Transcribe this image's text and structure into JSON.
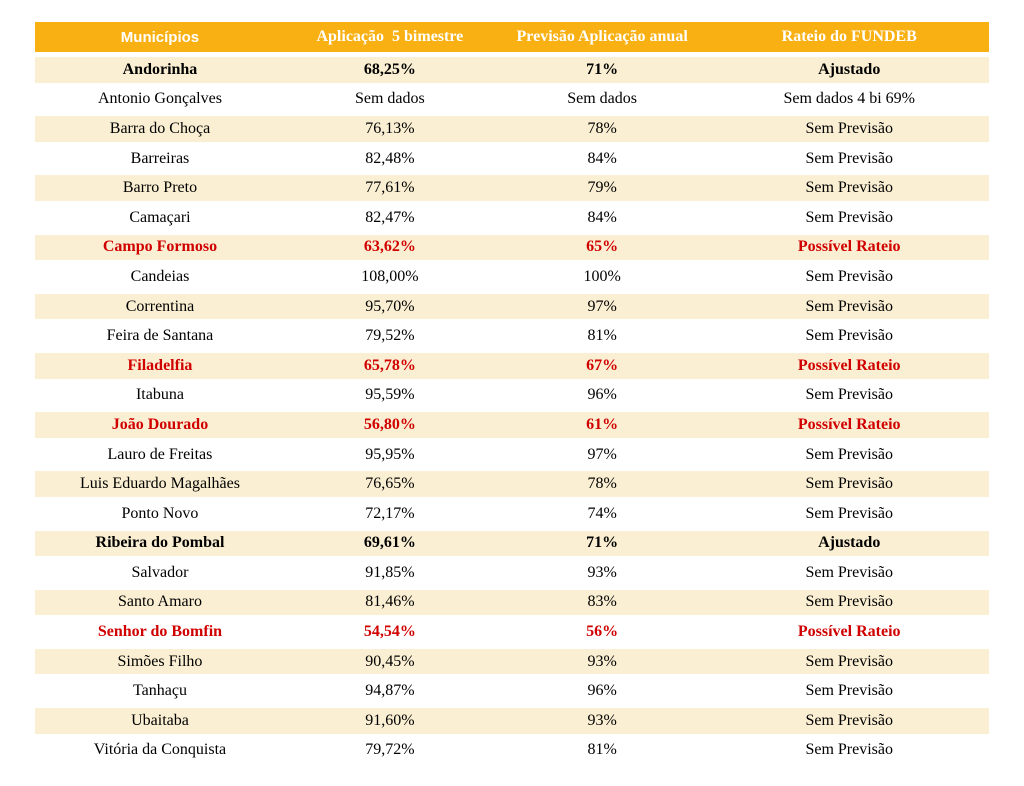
{
  "colors": {
    "page_bg": "#FFFFFF",
    "header_bg": "#F9B013",
    "header_text": "#FFFFFF",
    "row_alt_bg": "#FAEFD2",
    "row_bg": "#FFFFFF",
    "text": "#000000",
    "alert": "#D00000"
  },
  "table": {
    "columns": [
      {
        "label": "Municípios"
      },
      {
        "label": "Aplicação  5 bimestre"
      },
      {
        "label": "Previsão Aplicação anual"
      },
      {
        "label": "Rateio do FUNDEB"
      }
    ],
    "rows": [
      {
        "municipio": "Andorinha",
        "aplicacao": "68,25%",
        "previsao": "71%",
        "rateio": "Ajustado",
        "style": "bold"
      },
      {
        "municipio": "Antonio Gonçalves",
        "aplicacao": "Sem dados",
        "previsao": "Sem dados",
        "rateio": "Sem dados 4 bi 69%",
        "style": "normal"
      },
      {
        "municipio": "Barra do Choça",
        "aplicacao": "76,13%",
        "previsao": "78%",
        "rateio": "Sem Previsão",
        "style": "normal"
      },
      {
        "municipio": "Barreiras",
        "aplicacao": "82,48%",
        "previsao": "84%",
        "rateio": "Sem Previsão",
        "style": "normal"
      },
      {
        "municipio": "Barro Preto",
        "aplicacao": "77,61%",
        "previsao": "79%",
        "rateio": "Sem Previsão",
        "style": "normal"
      },
      {
        "municipio": "Camaçari",
        "aplicacao": "82,47%",
        "previsao": "84%",
        "rateio": "Sem Previsão",
        "style": "normal"
      },
      {
        "municipio": "Campo Formoso",
        "aplicacao": "63,62%",
        "previsao": "65%",
        "rateio": "Possível Rateio",
        "style": "alert"
      },
      {
        "municipio": "Candeias",
        "aplicacao": "108,00%",
        "previsao": "100%",
        "rateio": "Sem Previsão",
        "style": "normal"
      },
      {
        "municipio": "Correntina",
        "aplicacao": "95,70%",
        "previsao": "97%",
        "rateio": "Sem Previsão",
        "style": "normal"
      },
      {
        "municipio": "Feira de Santana",
        "aplicacao": "79,52%",
        "previsao": "81%",
        "rateio": "Sem Previsão",
        "style": "normal"
      },
      {
        "municipio": "Filadelfia",
        "aplicacao": "65,78%",
        "previsao": "67%",
        "rateio": "Possível Rateio",
        "style": "alert"
      },
      {
        "municipio": "Itabuna",
        "aplicacao": "95,59%",
        "previsao": "96%",
        "rateio": "Sem Previsão",
        "style": "normal"
      },
      {
        "municipio": "João Dourado",
        "aplicacao": "56,80%",
        "previsao": "61%",
        "rateio": "Possível Rateio",
        "style": "alert"
      },
      {
        "municipio": "Lauro de Freitas",
        "aplicacao": "95,95%",
        "previsao": "97%",
        "rateio": "Sem Previsão",
        "style": "normal"
      },
      {
        "municipio": "Luis Eduardo Magalhães",
        "aplicacao": "76,65%",
        "previsao": "78%",
        "rateio": "Sem Previsão",
        "style": "normal"
      },
      {
        "municipio": "Ponto Novo",
        "aplicacao": "72,17%",
        "previsao": "74%",
        "rateio": "Sem Previsão",
        "style": "normal"
      },
      {
        "municipio": "Ribeira do Pombal",
        "aplicacao": "69,61%",
        "previsao": "71%",
        "rateio": "Ajustado",
        "style": "bold"
      },
      {
        "municipio": "Salvador",
        "aplicacao": "91,85%",
        "previsao": "93%",
        "rateio": "Sem Previsão",
        "style": "normal"
      },
      {
        "municipio": "Santo Amaro",
        "aplicacao": "81,46%",
        "previsao": "83%",
        "rateio": "Sem Previsão",
        "style": "normal"
      },
      {
        "municipio": "Senhor do Bomfin",
        "aplicacao": "54,54%",
        "previsao": "56%",
        "rateio": "Possível Rateio",
        "style": "alert"
      },
      {
        "municipio": "Simões Filho",
        "aplicacao": "90,45%",
        "previsao": "93%",
        "rateio": "Sem Previsão",
        "style": "normal"
      },
      {
        "municipio": "Tanhaçu",
        "aplicacao": "94,87%",
        "previsao": "96%",
        "rateio": "Sem Previsão",
        "style": "normal"
      },
      {
        "municipio": "Ubaitaba",
        "aplicacao": "91,60%",
        "previsao": "93%",
        "rateio": "Sem Previsão",
        "style": "normal"
      },
      {
        "municipio": "Vitória da Conquista",
        "aplicacao": "79,72%",
        "previsao": "81%",
        "rateio": "Sem Previsão",
        "style": "normal"
      }
    ]
  }
}
